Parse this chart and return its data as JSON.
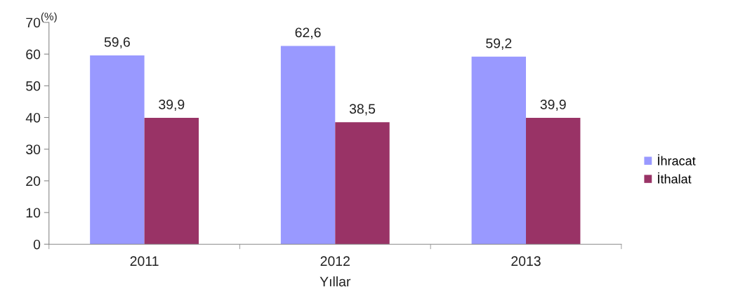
{
  "chart_data": {
    "type": "bar",
    "categories": [
      "2011",
      "2012",
      "2013"
    ],
    "series": [
      {
        "name": "İhracat",
        "color": "#9999ff",
        "values": [
          59.6,
          62.6,
          59.2
        ],
        "value_labels": [
          "59,6",
          "62,6",
          "59,2"
        ]
      },
      {
        "name": "İthalat",
        "color": "#993366",
        "values": [
          39.9,
          38.5,
          39.9
        ],
        "value_labels": [
          "39,9",
          "38,5",
          "39,9"
        ]
      }
    ],
    "xlabel": "Yıllar",
    "ylabel": "(%)",
    "ylim": [
      0,
      70
    ],
    "yticks": [
      0,
      10,
      20,
      30,
      40,
      50,
      60,
      70
    ],
    "grid": false,
    "legend": "right"
  }
}
